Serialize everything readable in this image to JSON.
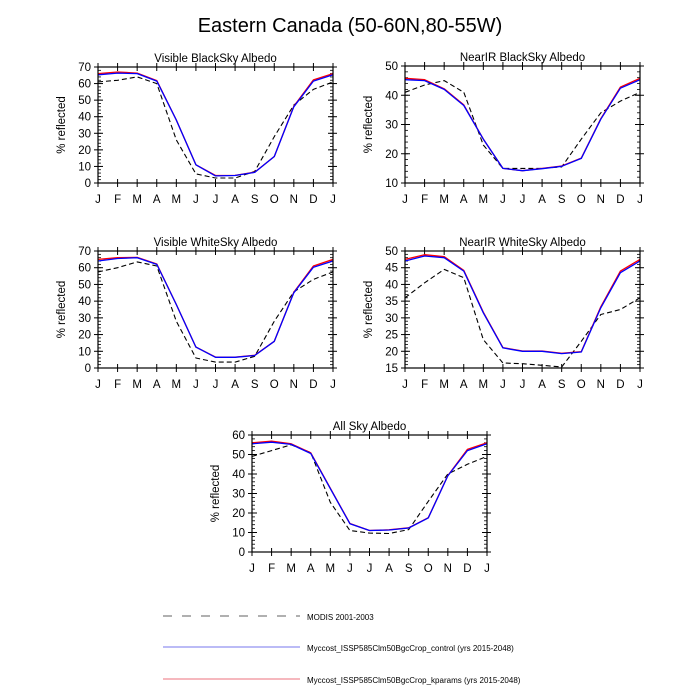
{
  "title": "Eastern Canada (50-60N,80-55W)",
  "legend": {
    "items": [
      {
        "label": "MODIS 2001-2003",
        "color": "#b0b0b0",
        "style": "dashed"
      },
      {
        "label": "Myccost_ISSP585Clm50BgcCrop_control (yrs 2015-2048)",
        "color": "#7777ee",
        "style": "solid"
      },
      {
        "label": "Myccost_ISSP585Clm50BgcCrop_kparams (yrs 2015-2048)",
        "color": "#f4a0a8",
        "style": "solid"
      }
    ]
  },
  "chart_data": [
    {
      "type": "line",
      "title": "Visible BlackSky Albedo",
      "xlabel": "",
      "ylabel": "% reflected",
      "categories": [
        "J",
        "F",
        "M",
        "A",
        "M",
        "J",
        "J",
        "A",
        "S",
        "O",
        "N",
        "D",
        "J"
      ],
      "ylim": [
        0,
        70
      ],
      "yticks": [
        0,
        10,
        20,
        30,
        40,
        50,
        60,
        70
      ],
      "series": [
        {
          "name": "MODIS 2001-2003",
          "color": "#000000",
          "dash": true,
          "values": [
            61,
            62,
            64,
            60,
            26,
            5.5,
            3,
            3,
            7,
            28,
            47,
            56.5,
            61
          ]
        },
        {
          "name": "Myccost_ISSP585Clm50BgcCrop_kparams (yrs 2015-2048)",
          "color": "#ff0000",
          "dash": false,
          "values": [
            66,
            67,
            66.3,
            61.8,
            38,
            11,
            4.5,
            4.6,
            6.5,
            16,
            46.3,
            62.2,
            66
          ]
        },
        {
          "name": "Myccost_ISSP585Clm50BgcCrop_control (yrs 2015-2048)",
          "color": "#0000ff",
          "dash": false,
          "values": [
            65.3,
            66.3,
            66,
            61.5,
            38,
            11,
            4.3,
            4.5,
            6.4,
            16,
            46,
            61.5,
            65.3
          ]
        }
      ]
    },
    {
      "type": "line",
      "title": "NearIR BlackSky Albedo",
      "xlabel": "",
      "ylabel": "% reflected",
      "categories": [
        "J",
        "F",
        "M",
        "A",
        "M",
        "J",
        "J",
        "A",
        "S",
        "O",
        "N",
        "D",
        "J"
      ],
      "ylim": [
        10,
        50
      ],
      "yticks": [
        10,
        20,
        30,
        40,
        50
      ],
      "series": [
        {
          "name": "MODIS 2001-2003",
          "color": "#000000",
          "dash": true,
          "values": [
            41,
            43.5,
            45,
            41,
            23,
            15,
            15,
            15,
            15.5,
            25,
            34,
            38,
            41
          ]
        },
        {
          "name": "Myccost_ISSP585Clm50BgcCrop_kparams (yrs 2015-2048)",
          "color": "#ff0000",
          "dash": false,
          "values": [
            45.8,
            45.3,
            42.2,
            36.7,
            25,
            15,
            14.2,
            15,
            15.8,
            18.5,
            32,
            42.8,
            45.8
          ]
        },
        {
          "name": "Myccost_ISSP585Clm50BgcCrop_control (yrs 2015-2048)",
          "color": "#0000ff",
          "dash": false,
          "values": [
            45.3,
            45,
            42,
            36.5,
            25,
            15,
            14.2,
            14.9,
            15.7,
            18.4,
            31.8,
            42.4,
            45.3
          ]
        }
      ]
    },
    {
      "type": "line",
      "title": "Visible WhiteSky Albedo",
      "xlabel": "",
      "ylabel": "% reflected",
      "categories": [
        "J",
        "F",
        "M",
        "A",
        "M",
        "J",
        "J",
        "A",
        "S",
        "O",
        "N",
        "D",
        "J"
      ],
      "ylim": [
        0,
        70
      ],
      "yticks": [
        0,
        10,
        20,
        30,
        40,
        50,
        60,
        70
      ],
      "series": [
        {
          "name": "MODIS 2001-2003",
          "color": "#000000",
          "dash": true,
          "values": [
            57.5,
            60,
            63.5,
            61,
            28,
            6,
            3.5,
            3.5,
            7,
            28,
            45.5,
            53,
            57.5
          ]
        },
        {
          "name": "Myccost_ISSP585Clm50BgcCrop_kparams (yrs 2015-2048)",
          "color": "#ff0000",
          "dash": false,
          "values": [
            65,
            66,
            66.2,
            62.2,
            38,
            12.5,
            6.5,
            6.5,
            7.6,
            16,
            45.3,
            61,
            65
          ]
        },
        {
          "name": "Myccost_ISSP585Clm50BgcCrop_control (yrs 2015-2048)",
          "color": "#0000ff",
          "dash": false,
          "values": [
            64,
            65.5,
            66,
            62,
            38,
            12.5,
            6.4,
            6.4,
            7.5,
            16,
            45,
            60.3,
            64
          ]
        }
      ]
    },
    {
      "type": "line",
      "title": "NearIR WhiteSky Albedo",
      "xlabel": "",
      "ylabel": "% reflected",
      "categories": [
        "J",
        "F",
        "M",
        "A",
        "M",
        "J",
        "J",
        "A",
        "S",
        "O",
        "N",
        "D",
        "J"
      ],
      "ylim": [
        15,
        50
      ],
      "yticks": [
        15,
        20,
        25,
        30,
        35,
        40,
        45,
        50
      ],
      "series": [
        {
          "name": "MODIS 2001-2003",
          "color": "#000000",
          "dash": true,
          "values": [
            36,
            40.5,
            44.5,
            42,
            23.5,
            16.5,
            16.3,
            15.8,
            15.3,
            23,
            31,
            32.5,
            36
          ]
        },
        {
          "name": "Myccost_ISSP585Clm50BgcCrop_kparams (yrs 2015-2048)",
          "color": "#ff0000",
          "dash": false,
          "values": [
            47.5,
            48.9,
            48.3,
            44.2,
            31.7,
            21.1,
            20.1,
            20.1,
            19.4,
            19.9,
            33.3,
            44,
            47.5
          ]
        },
        {
          "name": "Myccost_ISSP585Clm50BgcCrop_control (yrs 2015-2048)",
          "color": "#0000ff",
          "dash": false,
          "values": [
            47,
            48.5,
            48,
            44,
            31.5,
            21,
            20,
            20,
            19.3,
            19.8,
            33,
            43.5,
            47
          ]
        }
      ]
    },
    {
      "type": "line",
      "title": "All Sky Albedo",
      "xlabel": "",
      "ylabel": "% reflected",
      "categories": [
        "J",
        "F",
        "M",
        "A",
        "M",
        "J",
        "J",
        "A",
        "S",
        "O",
        "N",
        "D",
        "J"
      ],
      "ylim": [
        0,
        60
      ],
      "yticks": [
        0,
        10,
        20,
        30,
        40,
        50,
        60
      ],
      "series": [
        {
          "name": "MODIS 2001-2003",
          "color": "#000000",
          "dash": true,
          "values": [
            49,
            52,
            55,
            51,
            25.5,
            11,
            9.7,
            9.5,
            11.5,
            26,
            40,
            45,
            49
          ]
        },
        {
          "name": "Myccost_ISSP585Clm50BgcCrop_kparams (yrs 2015-2048)",
          "color": "#ff0000",
          "dash": false,
          "values": [
            56,
            56.8,
            55.5,
            50.8,
            32.7,
            14.6,
            11,
            11.4,
            12.4,
            17.6,
            39.2,
            52.6,
            56
          ]
        },
        {
          "name": "Myccost_ISSP585Clm50BgcCrop_control (yrs 2015-2048)",
          "color": "#0000ff",
          "dash": false,
          "values": [
            55.5,
            56.3,
            55.2,
            50.5,
            32.5,
            14.5,
            11,
            11.3,
            12.3,
            17.5,
            39,
            52,
            55.5
          ]
        }
      ]
    }
  ]
}
